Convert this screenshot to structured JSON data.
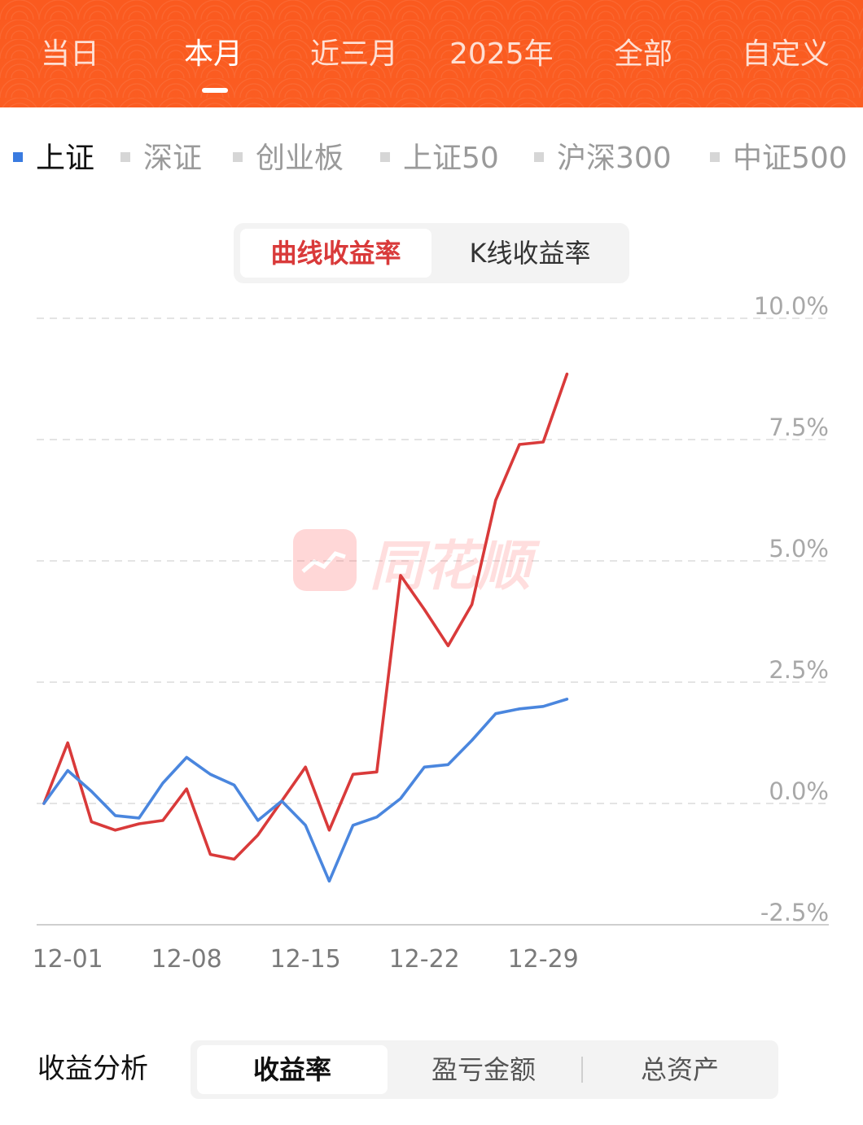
{
  "colors": {
    "header_bg": "#fb5a1e",
    "accent_red": "#d93a3a",
    "series_red": "#d93a3a",
    "series_blue": "#4a86de",
    "selected_index": "#3a7be0"
  },
  "period_tabs": [
    {
      "label": "当日",
      "active": false
    },
    {
      "label": "本月",
      "active": true
    },
    {
      "label": "近三月",
      "active": false
    },
    {
      "label": "2025年",
      "active": false
    },
    {
      "label": "全部",
      "active": false
    },
    {
      "label": "自定义",
      "active": false
    }
  ],
  "index_selector": [
    {
      "label": "上证",
      "active": true
    },
    {
      "label": "深证",
      "active": false
    },
    {
      "label": "创业板",
      "active": false
    },
    {
      "label": "上证50",
      "active": false
    },
    {
      "label": "沪深300",
      "active": false
    },
    {
      "label": "中证500",
      "active": false
    }
  ],
  "chart_mode": {
    "active": "曲线收益率",
    "inactive": "K线收益率"
  },
  "watermark": "同花顺",
  "chart_data": {
    "type": "line",
    "x": [
      "11-28",
      "12-01",
      "12-02",
      "12-03",
      "12-04",
      "12-05",
      "12-08",
      "12-09",
      "12-10",
      "12-11",
      "12-12",
      "12-15",
      "12-16",
      "12-17",
      "12-18",
      "12-19",
      "12-22",
      "12-23",
      "12-24",
      "12-25",
      "12-26",
      "12-29",
      "12-30"
    ],
    "x_ticks": [
      "12-01",
      "12-08",
      "12-15",
      "12-22",
      "12-29"
    ],
    "y_ticks": [
      "10.0%",
      "7.5%",
      "5.0%",
      "2.5%",
      "0.0%",
      "-2.5%"
    ],
    "ylim": [
      -2.5,
      10.0
    ],
    "series": [
      {
        "color": "#d93a3a",
        "values": [
          0.0,
          1.25,
          -0.38,
          -0.55,
          -0.42,
          -0.35,
          0.3,
          -1.05,
          -1.15,
          -0.65,
          0.05,
          0.75,
          -0.55,
          0.6,
          0.65,
          4.7,
          4.0,
          3.25,
          4.1,
          6.25,
          7.4,
          7.45,
          8.85
        ]
      },
      {
        "color": "#4a86de",
        "values": [
          0.0,
          0.68,
          0.25,
          -0.25,
          -0.3,
          0.42,
          0.95,
          0.6,
          0.38,
          -0.35,
          0.05,
          -0.45,
          -1.6,
          -0.45,
          -0.28,
          0.1,
          0.75,
          0.8,
          1.3,
          1.85,
          1.95,
          2.0,
          2.15
        ]
      }
    ],
    "grid": true
  },
  "analysis": {
    "title": "收益分析",
    "tabs": [
      {
        "label": "收益率",
        "active": true
      },
      {
        "label": "盈亏金额",
        "active": false
      },
      {
        "label": "总资产",
        "active": false
      }
    ]
  }
}
